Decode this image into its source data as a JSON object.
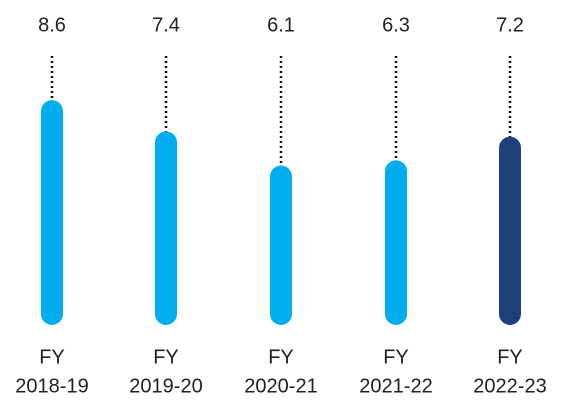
{
  "chart_data": {
    "type": "bar",
    "categories": [
      [
        "FY",
        "2018-19"
      ],
      [
        "FY",
        "2019-20"
      ],
      [
        "FY",
        "2020-21"
      ],
      [
        "FY",
        "2021-22"
      ],
      [
        "FY",
        "2022-23"
      ]
    ],
    "values": [
      8.6,
      7.4,
      6.1,
      6.3,
      7.2
    ],
    "value_labels": [
      "8.6",
      "7.4",
      "6.1",
      "6.3",
      "7.2"
    ],
    "colors": [
      "#00AEEF",
      "#00AEEF",
      "#00AEEF",
      "#00AEEF",
      "#1F3F7A"
    ],
    "connector_color": "#111111",
    "title": "",
    "xlabel": "",
    "ylabel": "",
    "ylim": [
      0,
      10
    ],
    "grid": false,
    "legend": "none"
  }
}
